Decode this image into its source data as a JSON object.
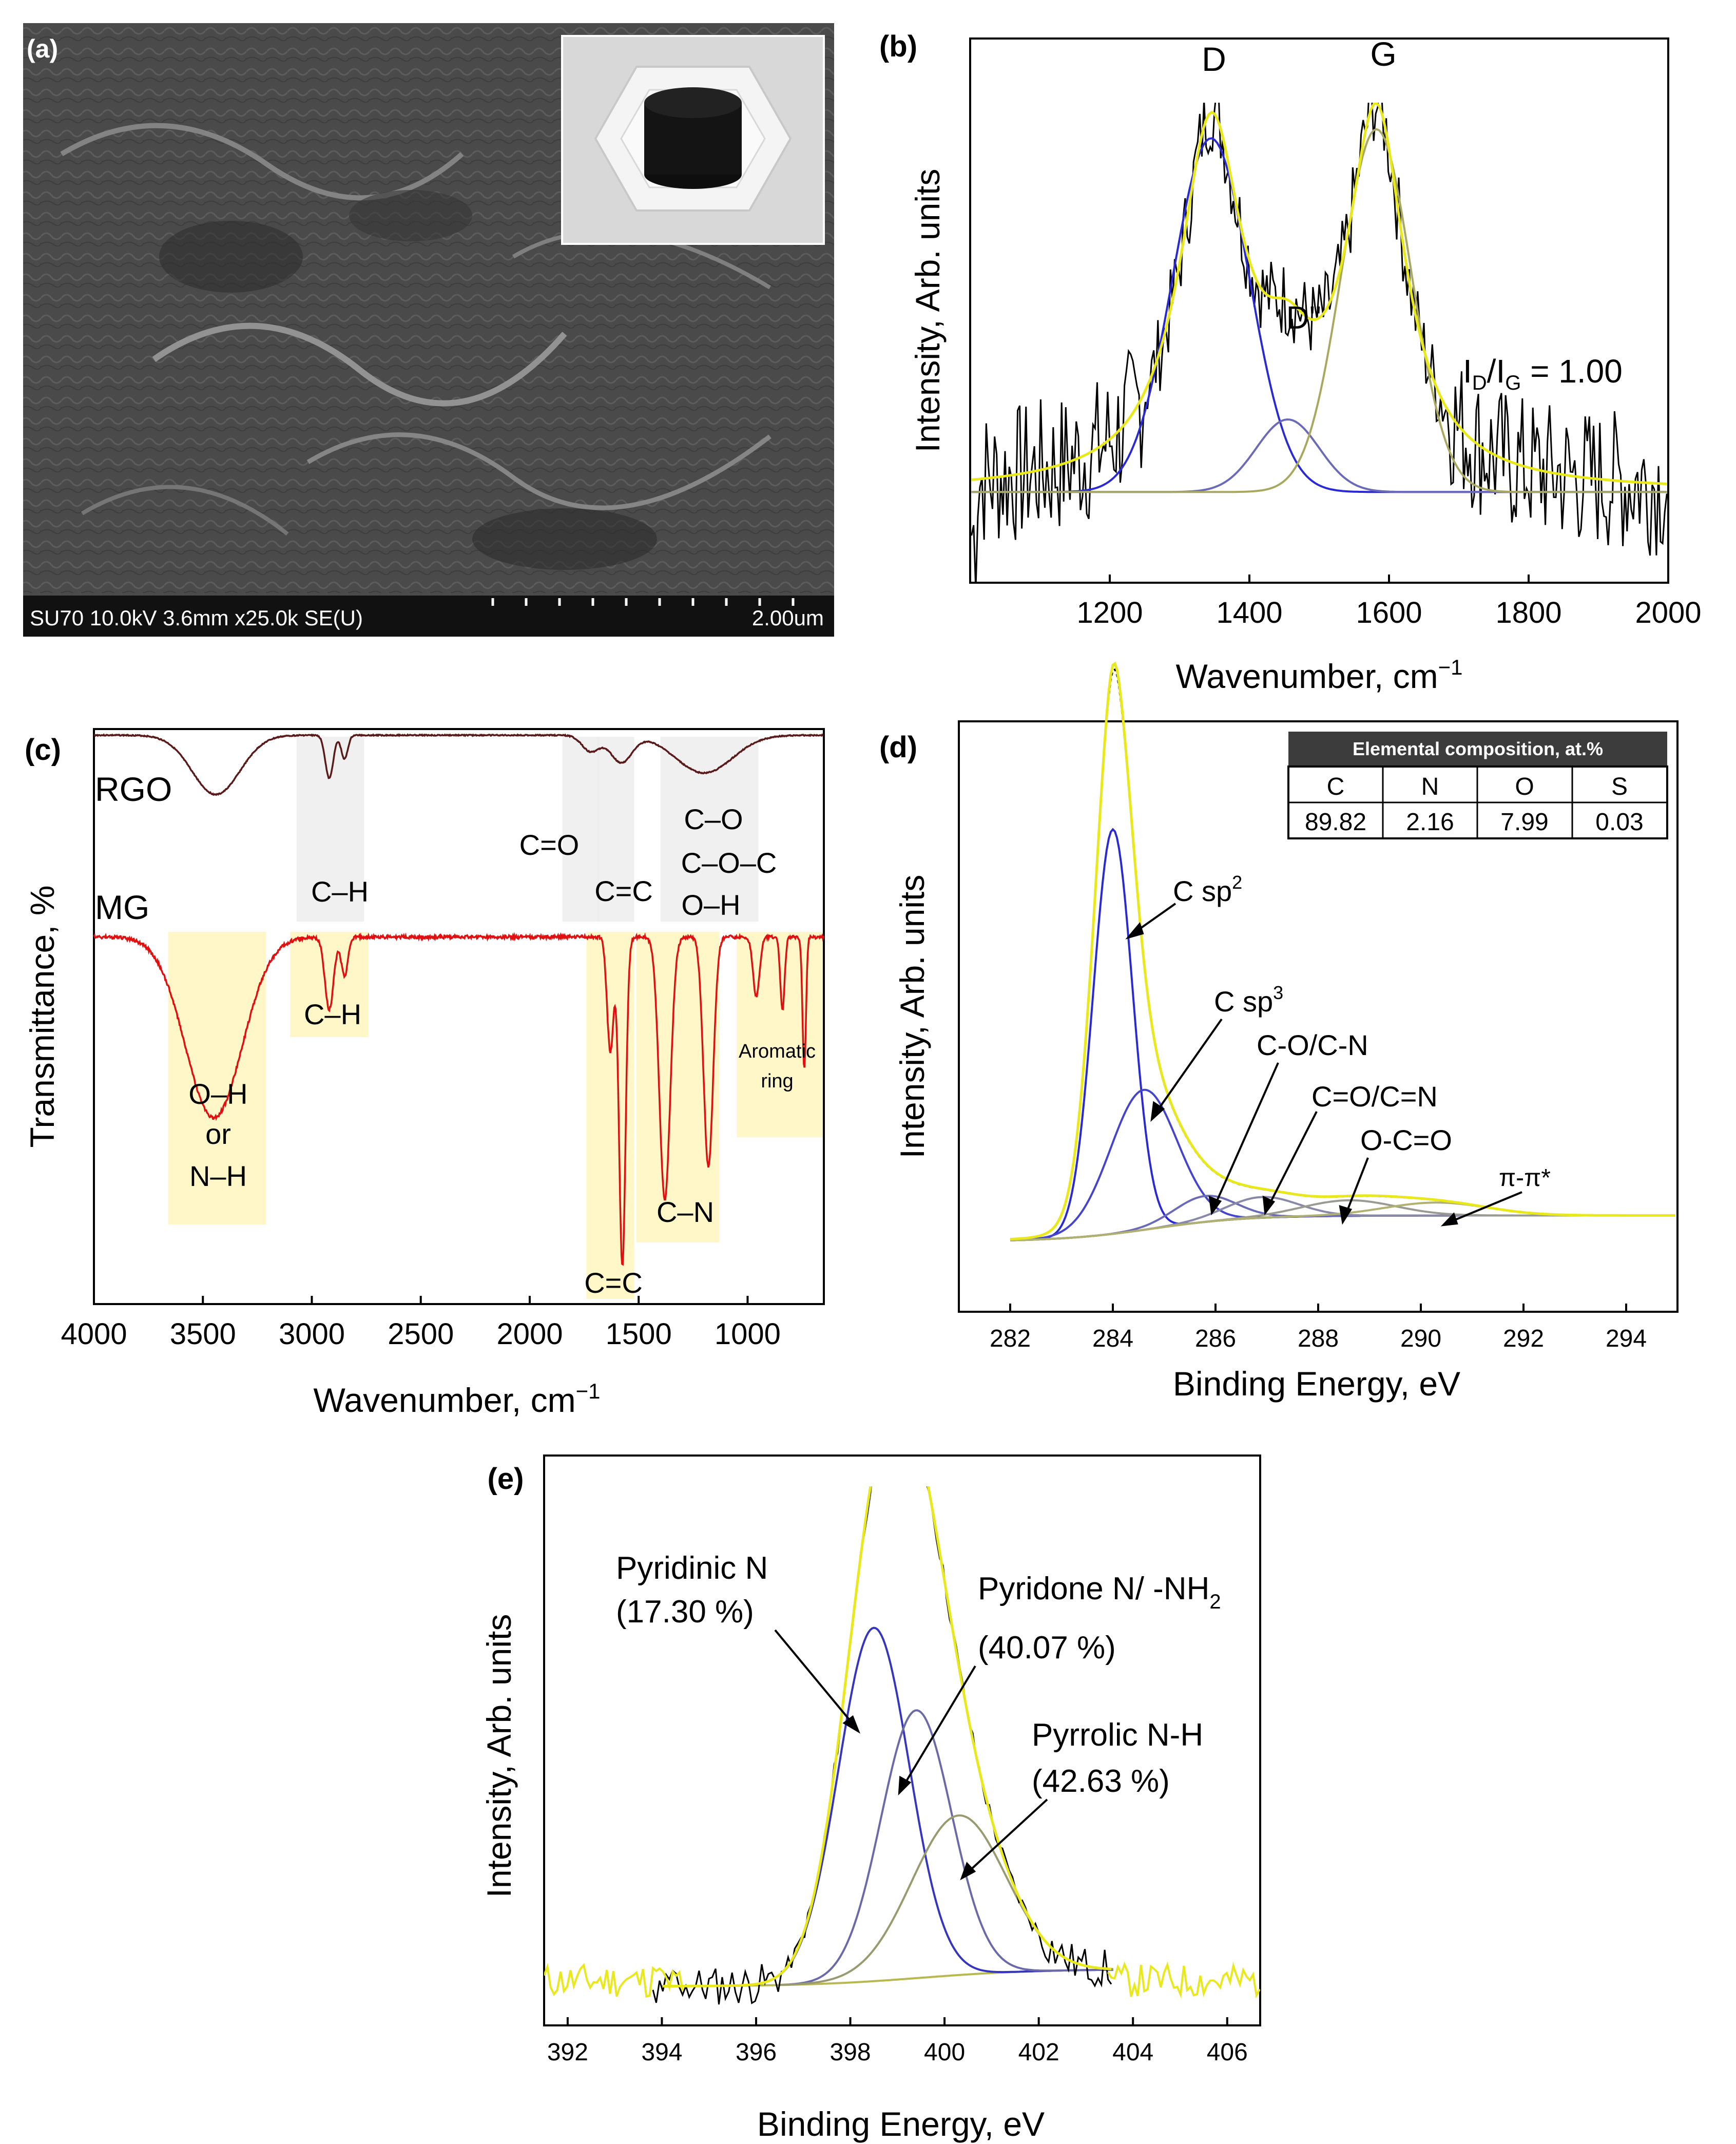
{
  "figure": {
    "a": {
      "label": "(a)",
      "sem_info": "SU70 10.0kV 3.6mm x25.0k SE(U)",
      "scale_bar": "2.00um"
    }
  },
  "chart_data": [
    {
      "panel": "(b)",
      "type": "line",
      "title": "",
      "xlabel": "Wavenumber, cm",
      "xlabel_sup": "−1",
      "ylabel": "Intensity, Arb. units",
      "xlim": [
        1000,
        2000
      ],
      "ylim": [
        0,
        1.2
      ],
      "xticks": [
        1200,
        1400,
        1600,
        1800,
        2000
      ],
      "grid": false,
      "peaks": [
        {
          "name": "D",
          "center": 1345,
          "height": 0.78,
          "width": 55,
          "color": "#2a2ad4"
        },
        {
          "name": "D''",
          "center": 1455,
          "height": 0.16,
          "width": 45,
          "color": "#6a6ab8"
        },
        {
          "name": "G",
          "center": 1582,
          "height": 0.8,
          "width": 50,
          "color": "#a8a860"
        }
      ],
      "baseline": 0.2,
      "fit_color": "#e8e81a",
      "raw_color": "#000000",
      "annotations": {
        "D": "D",
        "Dpp": "D''",
        "G": "G"
      },
      "ratio_label": {
        "I1": "I",
        "sub1": "D",
        "slash": "/I",
        "sub2": "G",
        "value": " = 1.00"
      }
    },
    {
      "panel": "(c)",
      "type": "line",
      "xlabel": "Wavenumber, cm",
      "xlabel_sup": "−1",
      "ylabel": "Transmittance, %",
      "xlim": [
        4000,
        650
      ],
      "xticks": [
        4000,
        3500,
        3000,
        2500,
        2000,
        1500,
        1000
      ],
      "series": [
        {
          "name": "RGO",
          "color": "#5a1a1a",
          "bands": [
            {
              "center": 3440,
              "depth": 0.55,
              "width": 110
            },
            {
              "center": 2920,
              "depth": 0.4,
              "width": 18
            },
            {
              "center": 2850,
              "depth": 0.22,
              "width": 15
            },
            {
              "center": 1720,
              "depth": 0.15,
              "width": 40
            },
            {
              "center": 1580,
              "depth": 0.25,
              "width": 50
            },
            {
              "center": 1200,
              "depth": 0.35,
              "width": 130
            }
          ]
        },
        {
          "name": "MG",
          "color": "#e01010",
          "bands": [
            {
              "center": 3450,
              "depth": 0.55,
              "width": 130
            },
            {
              "center": 2920,
              "depth": 0.22,
              "width": 20
            },
            {
              "center": 2850,
              "depth": 0.12,
              "width": 15
            },
            {
              "center": 1630,
              "depth": 0.35,
              "width": 15
            },
            {
              "center": 1575,
              "depth": 1.0,
              "width": 15
            },
            {
              "center": 1380,
              "depth": 0.8,
              "width": 25
            },
            {
              "center": 1180,
              "depth": 0.7,
              "width": 22
            },
            {
              "center": 960,
              "depth": 0.18,
              "width": 15
            },
            {
              "center": 840,
              "depth": 0.22,
              "width": 10
            },
            {
              "center": 740,
              "depth": 0.4,
              "width": 8
            }
          ]
        }
      ],
      "band_labels_rgo": [
        "C–H",
        "C=O",
        "C=C",
        "C–O",
        "C–O–C",
        "O–H"
      ],
      "band_labels_mg": [
        "O–H",
        "or",
        "N–H",
        "C–H",
        "C=C",
        "C–N",
        "Aromatic",
        "ring"
      ]
    },
    {
      "panel": "(d)",
      "type": "line",
      "xlabel": "Binding Energy, eV",
      "ylabel": "Intensity, Arb. units",
      "xlim": [
        281,
        295
      ],
      "xticks": [
        282,
        284,
        286,
        288,
        290,
        292,
        294
      ],
      "components": [
        {
          "name": "C sp2",
          "center": 284.0,
          "height": 0.78,
          "width": 0.38,
          "color": "#2a2ad4"
        },
        {
          "name": "C sp3",
          "center": 284.6,
          "height": 0.27,
          "width": 0.65,
          "color": "#4444cc"
        },
        {
          "name": "C-O/C-N",
          "center": 285.8,
          "height": 0.05,
          "width": 0.6,
          "color": "#6a6ab8"
        },
        {
          "name": "C=O/C=N",
          "center": 286.9,
          "height": 0.04,
          "width": 0.7,
          "color": "#8888a8"
        },
        {
          "name": "O-C=O",
          "center": 288.6,
          "height": 0.03,
          "width": 0.9,
          "color": "#9a9a90"
        },
        {
          "name": "π-π*",
          "center": 290.3,
          "height": 0.025,
          "width": 1.0,
          "color": "#b0b070"
        }
      ],
      "labels": {
        "csp2": "C sp",
        "csp2_sup": "2",
        "csp3": "C sp",
        "csp3_sup": "3",
        "co": "C-O/C-N",
        "ceo": "C=O/C=N",
        "oco": "O-C=O",
        "pi": "π-π*"
      },
      "table": {
        "title": "Elemental composition, at.%",
        "headers": [
          "C",
          "N",
          "O",
          "S"
        ],
        "values": [
          "89.82",
          "2.16",
          "7.99",
          "0.03"
        ]
      }
    },
    {
      "panel": "(e)",
      "type": "line",
      "xlabel": "Binding Energy, eV",
      "ylabel": "Intensity, Arb. units",
      "xlim": [
        391.5,
        406.7
      ],
      "xticks": [
        392,
        394,
        396,
        398,
        400,
        402,
        404,
        406
      ],
      "components": [
        {
          "name": "Pyridinic N",
          "percent": "(17.30 %)",
          "center": 398.5,
          "height": 0.62,
          "width": 0.75,
          "color": "#3535c0"
        },
        {
          "name": "Pyridone N/ -NH",
          "sub": "2",
          "percent": "(40.07 %)",
          "center": 399.4,
          "height": 0.47,
          "width": 0.75,
          "color": "#6a6aa8"
        },
        {
          "name": "Pyrrolic N-H",
          "percent": "(42.63 %)",
          "center": 400.3,
          "height": 0.28,
          "width": 1.0,
          "color": "#9a9a70"
        }
      ]
    }
  ]
}
